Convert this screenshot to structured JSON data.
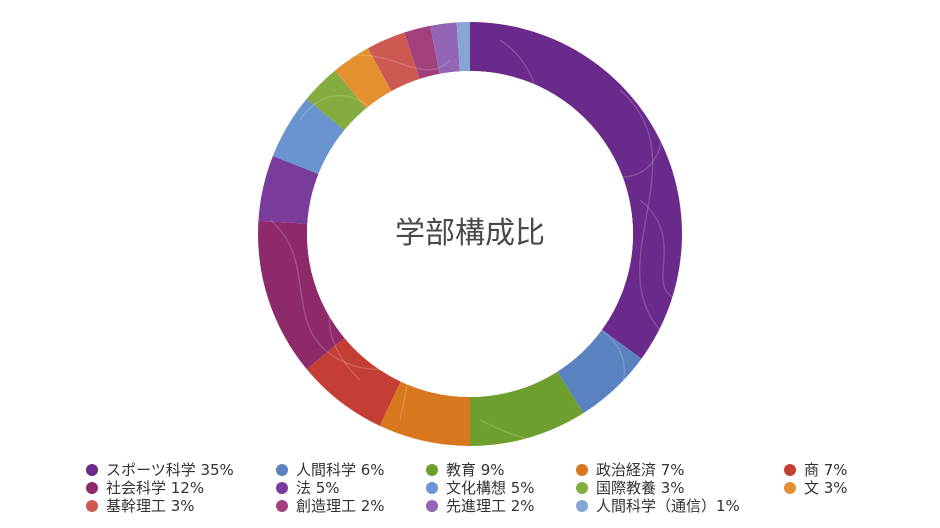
{
  "chart_data": {
    "type": "pie",
    "title": "学部構成比",
    "categories": [
      "スポーツ科学",
      "人間科学",
      "教育",
      "政治経済",
      "商",
      "社会科学",
      "法",
      "文化構想",
      "国際教養",
      "文",
      "基幹理工",
      "創造理工",
      "先進理工",
      "人間科学（通信）"
    ],
    "values": [
      35,
      6,
      9,
      7,
      7,
      12,
      5,
      5,
      3,
      3,
      3,
      2,
      2,
      1
    ],
    "legend_labels": [
      "スポーツ科学 35%",
      "人間科学 6%",
      "教育 9%",
      "政治経済 7%",
      "商 7%",
      "社会科学 12%",
      "法 5%",
      "文化構想 5%",
      "国際教養 3%",
      "文 3%",
      "基幹理工 3%",
      "創造理工 2%",
      "先進理工 2%",
      "人間科学（通信）1%"
    ],
    "colors": [
      "#6a2a8c",
      "#5a82c0",
      "#6e9e2e",
      "#d8771e",
      "#c43e34",
      "#8e2a6a",
      "#7a3c9a",
      "#6a94d0",
      "#84ac3e",
      "#e4902e",
      "#cc5a52",
      "#a2407e",
      "#9266b4",
      "#86a4d4"
    ],
    "legend_position": "bottom",
    "donut": true
  }
}
